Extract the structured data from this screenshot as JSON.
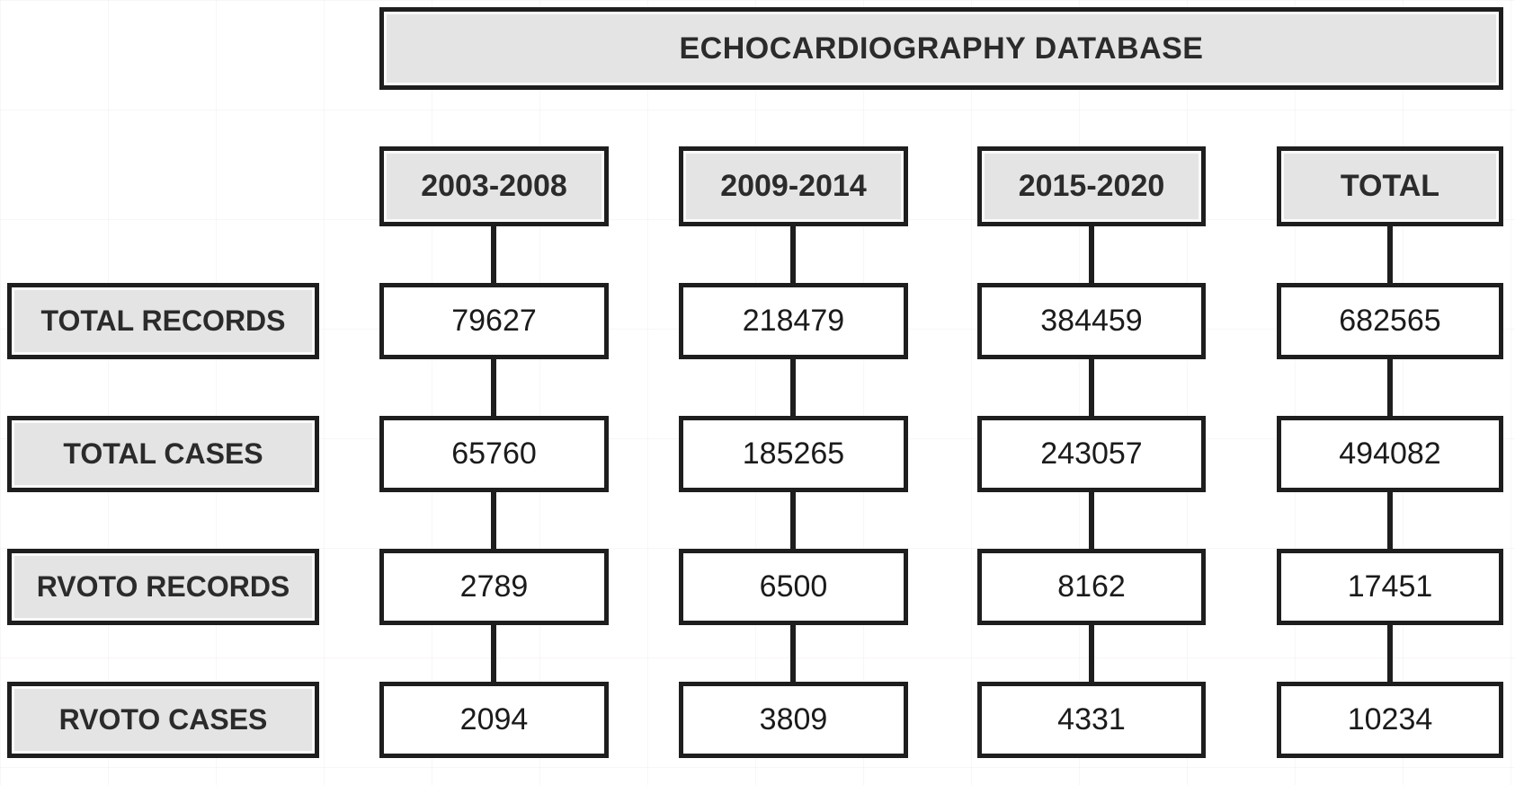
{
  "title": "ECHOCARDIOGRAPHY DATABASE",
  "columns": [
    {
      "label": "2003-2008"
    },
    {
      "label": "2009-2014"
    },
    {
      "label": "2015-2020"
    },
    {
      "label": "TOTAL"
    }
  ],
  "rows": [
    {
      "label": "TOTAL RECORDS",
      "values": [
        "79627",
        "218479",
        "384459",
        "682565"
      ]
    },
    {
      "label": "TOTAL CASES",
      "values": [
        "65760",
        "185265",
        "243057",
        "494082"
      ]
    },
    {
      "label": "RVOTO RECORDS",
      "values": [
        "2789",
        "6500",
        "8162",
        "17451"
      ]
    },
    {
      "label": "RVOTO CASES",
      "values": [
        "2094",
        "3809",
        "4331",
        "10234"
      ]
    }
  ],
  "colors": {
    "box_fill_grey": "#e4e4e4",
    "box_fill_white": "#ffffff",
    "border": "#1e1e1e",
    "text": "#2b2b2b"
  }
}
